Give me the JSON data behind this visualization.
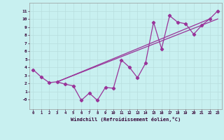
{
  "xlabel": "Windchill (Refroidissement éolien,°C)",
  "background_color": "#c8f0f0",
  "grid_color": "#b8dede",
  "line_color": "#993399",
  "xlim": [
    -0.5,
    23.5
  ],
  "ylim": [
    -1.2,
    12
  ],
  "yticks": [
    0,
    1,
    2,
    3,
    4,
    5,
    6,
    7,
    8,
    9,
    10,
    11
  ],
  "ytick_labels": [
    "-0",
    "1",
    "2",
    "3",
    "4",
    "5",
    "6",
    "7",
    "8",
    "9",
    "10",
    "11"
  ],
  "xticks": [
    0,
    1,
    2,
    3,
    4,
    5,
    6,
    7,
    8,
    9,
    10,
    11,
    12,
    13,
    14,
    15,
    16,
    17,
    18,
    19,
    20,
    21,
    22,
    23
  ],
  "series1_x": [
    0,
    1,
    2,
    3,
    4,
    5,
    6,
    7,
    8,
    9,
    10,
    11,
    12,
    13,
    14,
    15,
    16,
    17,
    18,
    19,
    20,
    21,
    22,
    23
  ],
  "series1_y": [
    3.7,
    2.8,
    2.1,
    2.2,
    1.9,
    1.7,
    -0.1,
    0.8,
    -0.1,
    1.5,
    1.4,
    4.9,
    4.0,
    2.7,
    4.5,
    9.6,
    6.3,
    10.4,
    9.6,
    9.4,
    8.1,
    9.2,
    10.0,
    11.0
  ],
  "series2_x": [
    3,
    22
  ],
  "series2_y": [
    2.2,
    10.0
  ],
  "series3_x": [
    3,
    23
  ],
  "series3_y": [
    2.2,
    10.0
  ]
}
